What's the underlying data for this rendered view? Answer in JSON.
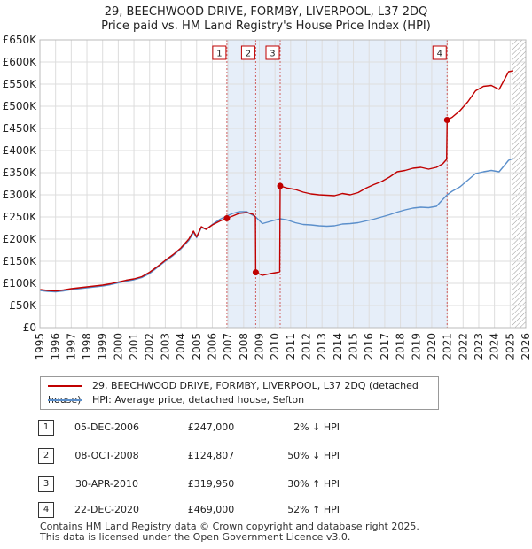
{
  "title_line1": "29, BEECHWOOD DRIVE, FORMBY, LIVERPOOL, L37 2DQ",
  "title_line2": "Price paid vs. HM Land Registry's House Price Index (HPI)",
  "legend": {
    "red_label": "29, BEECHWOOD DRIVE, FORMBY, LIVERPOOL, L37 2DQ (detached house)",
    "blue_label": "HPI: Average price, detached house, Sefton"
  },
  "colors": {
    "red": "#c00000",
    "blue": "#5b8fcb",
    "shade": "#e6eef9",
    "grid": "#dddddd"
  },
  "transactions": [
    {
      "num": "1",
      "date": "05-DEC-2006",
      "price": "£247,000",
      "hpi": "2% ↓ HPI"
    },
    {
      "num": "2",
      "date": "08-OCT-2008",
      "price": "£124,807",
      "hpi": "50% ↓ HPI"
    },
    {
      "num": "3",
      "date": "30-APR-2010",
      "price": "£319,950",
      "hpi": "30% ↑ HPI"
    },
    {
      "num": "4",
      "date": "22-DEC-2020",
      "price": "£469,000",
      "hpi": "52% ↑ HPI"
    }
  ],
  "footer_line1": "Contains HM Land Registry data © Crown copyright and database right 2025.",
  "footer_line2": "This data is licensed under the Open Government Licence v3.0.",
  "chart_data": {
    "type": "line",
    "xlim": [
      1995,
      2026
    ],
    "ylim": [
      0,
      650000
    ],
    "x_ticks": [
      1995,
      1996,
      1997,
      1998,
      1999,
      2000,
      2001,
      2002,
      2003,
      2004,
      2005,
      2006,
      2007,
      2008,
      2009,
      2010,
      2011,
      2012,
      2013,
      2014,
      2015,
      2016,
      2017,
      2018,
      2019,
      2020,
      2021,
      2022,
      2023,
      2024,
      2025,
      2026
    ],
    "y_ticks": [
      0,
      50000,
      100000,
      150000,
      200000,
      250000,
      300000,
      350000,
      400000,
      450000,
      500000,
      550000,
      600000,
      650000
    ],
    "y_tick_labels": [
      "£0",
      "£50K",
      "£100K",
      "£150K",
      "£200K",
      "£250K",
      "£300K",
      "£350K",
      "£400K",
      "£450K",
      "£500K",
      "£550K",
      "£600K",
      "£650K"
    ],
    "shaded_x_range": [
      2006.93,
      2020.98
    ],
    "hatched_from_x": 2025.1,
    "markers": [
      {
        "label": "1",
        "x": 2006.93,
        "y": 247000
      },
      {
        "label": "2",
        "x": 2008.77,
        "y": 124807
      },
      {
        "label": "3",
        "x": 2010.33,
        "y": 319950
      },
      {
        "label": "4",
        "x": 2020.98,
        "y": 469000
      }
    ],
    "series": [
      {
        "name": "29, BEECHWOOD DRIVE, FORMBY, LIVERPOOL, L37 2DQ (detached house)",
        "color": "#c00000",
        "points": [
          [
            1995,
            86000
          ],
          [
            1995.5,
            84000
          ],
          [
            1996,
            83000
          ],
          [
            1996.5,
            85000
          ],
          [
            1997,
            88000
          ],
          [
            1997.5,
            90000
          ],
          [
            1998,
            92000
          ],
          [
            1998.5,
            94000
          ],
          [
            1999,
            96000
          ],
          [
            1999.5,
            99000
          ],
          [
            2000,
            103000
          ],
          [
            2000.5,
            107000
          ],
          [
            2001,
            110000
          ],
          [
            2001.5,
            115000
          ],
          [
            2002,
            125000
          ],
          [
            2002.5,
            138000
          ],
          [
            2003,
            152000
          ],
          [
            2003.5,
            165000
          ],
          [
            2004,
            180000
          ],
          [
            2004.5,
            200000
          ],
          [
            2004.8,
            218000
          ],
          [
            2005,
            205000
          ],
          [
            2005.3,
            228000
          ],
          [
            2005.6,
            222000
          ],
          [
            2006,
            232000
          ],
          [
            2006.5,
            241000
          ],
          [
            2006.93,
            247000
          ],
          [
            2007.3,
            252000
          ],
          [
            2007.7,
            258000
          ],
          [
            2008.2,
            260000
          ],
          [
            2008.6,
            256000
          ],
          [
            2008.75,
            250000
          ],
          [
            2008.77,
            124807
          ],
          [
            2009.2,
            118000
          ],
          [
            2009.7,
            122000
          ],
          [
            2010.2,
            125000
          ],
          [
            2010.3,
            126000
          ],
          [
            2010.33,
            319950
          ],
          [
            2010.8,
            315000
          ],
          [
            2011.3,
            312000
          ],
          [
            2011.8,
            306000
          ],
          [
            2012.3,
            302000
          ],
          [
            2012.8,
            300000
          ],
          [
            2013.3,
            299000
          ],
          [
            2013.8,
            298000
          ],
          [
            2014.3,
            303000
          ],
          [
            2014.8,
            300000
          ],
          [
            2015.3,
            305000
          ],
          [
            2015.8,
            315000
          ],
          [
            2016.3,
            323000
          ],
          [
            2016.8,
            330000
          ],
          [
            2017.3,
            340000
          ],
          [
            2017.8,
            352000
          ],
          [
            2018.3,
            355000
          ],
          [
            2018.8,
            360000
          ],
          [
            2019.3,
            362000
          ],
          [
            2019.8,
            358000
          ],
          [
            2020.3,
            362000
          ],
          [
            2020.7,
            370000
          ],
          [
            2020.95,
            380000
          ],
          [
            2020.98,
            469000
          ],
          [
            2021.3,
            475000
          ],
          [
            2021.8,
            490000
          ],
          [
            2022.3,
            510000
          ],
          [
            2022.8,
            535000
          ],
          [
            2023.3,
            545000
          ],
          [
            2023.8,
            547000
          ],
          [
            2024.3,
            538000
          ],
          [
            2024.6,
            558000
          ],
          [
            2024.9,
            578000
          ],
          [
            2025.2,
            580000
          ]
        ]
      },
      {
        "name": "HPI: Average price, detached house, Sefton",
        "color": "#5b8fcb",
        "points": [
          [
            1995,
            84000
          ],
          [
            1995.5,
            82000
          ],
          [
            1996,
            81000
          ],
          [
            1996.5,
            83000
          ],
          [
            1997,
            86000
          ],
          [
            1997.5,
            88000
          ],
          [
            1998,
            90000
          ],
          [
            1998.5,
            92000
          ],
          [
            1999,
            94000
          ],
          [
            1999.5,
            97000
          ],
          [
            2000,
            101000
          ],
          [
            2000.5,
            105000
          ],
          [
            2001,
            108000
          ],
          [
            2001.5,
            113000
          ],
          [
            2002,
            122000
          ],
          [
            2002.5,
            136000
          ],
          [
            2003,
            150000
          ],
          [
            2003.5,
            163000
          ],
          [
            2004,
            178000
          ],
          [
            2004.5,
            197000
          ],
          [
            2004.8,
            215000
          ],
          [
            2005,
            203000
          ],
          [
            2005.3,
            226000
          ],
          [
            2005.6,
            222000
          ],
          [
            2006,
            233000
          ],
          [
            2006.5,
            245000
          ],
          [
            2006.93,
            252000
          ],
          [
            2007.3,
            258000
          ],
          [
            2007.7,
            262000
          ],
          [
            2008.2,
            262000
          ],
          [
            2008.77,
            250000
          ],
          [
            2009.2,
            235000
          ],
          [
            2009.7,
            240000
          ],
          [
            2010.33,
            246000
          ],
          [
            2010.8,
            243000
          ],
          [
            2011.3,
            237000
          ],
          [
            2011.8,
            233000
          ],
          [
            2012.3,
            232000
          ],
          [
            2012.8,
            230000
          ],
          [
            2013.3,
            229000
          ],
          [
            2013.8,
            230000
          ],
          [
            2014.3,
            234000
          ],
          [
            2014.8,
            235000
          ],
          [
            2015.3,
            237000
          ],
          [
            2015.8,
            241000
          ],
          [
            2016.3,
            245000
          ],
          [
            2016.8,
            250000
          ],
          [
            2017.3,
            255000
          ],
          [
            2017.8,
            261000
          ],
          [
            2018.3,
            266000
          ],
          [
            2018.8,
            270000
          ],
          [
            2019.3,
            272000
          ],
          [
            2019.8,
            271000
          ],
          [
            2020.3,
            274000
          ],
          [
            2020.98,
            300000
          ],
          [
            2021.3,
            308000
          ],
          [
            2021.8,
            318000
          ],
          [
            2022.3,
            333000
          ],
          [
            2022.8,
            348000
          ],
          [
            2023.3,
            352000
          ],
          [
            2023.8,
            355000
          ],
          [
            2024.3,
            352000
          ],
          [
            2024.6,
            365000
          ],
          [
            2024.9,
            378000
          ],
          [
            2025.2,
            382000
          ]
        ]
      }
    ]
  }
}
